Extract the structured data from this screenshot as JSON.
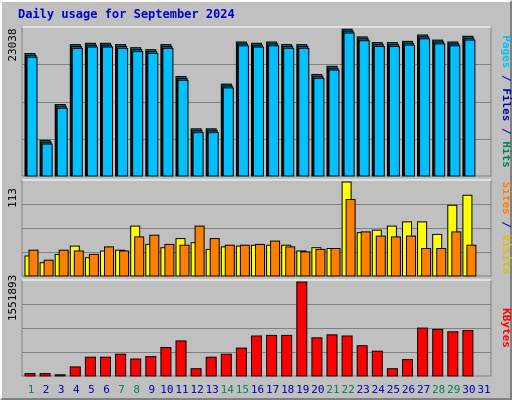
{
  "title": "Daily usage for September 2024",
  "colors": {
    "background": "#c0c0c0",
    "panel": "#c0c0c0",
    "grid": "#808080",
    "title": "#0000cc",
    "hits": "#00805c",
    "files": "#0000aa",
    "pages": "#00c0ff",
    "hits_bar": "#00805c",
    "files_bar": "#0066cc",
    "pages_bar": "#00c0ff",
    "visits_bar": "#ffff00",
    "sites_bar": "#ff8000",
    "visits_label": "#e0c000",
    "sites_label": "#ff8000",
    "kbytes_bar": "#ff0000",
    "weekend_day": "#00805c",
    "weekday": "#0000aa"
  },
  "chart_data": [
    {
      "type": "bar",
      "panel": "hits-files-pages",
      "categories": [
        "1",
        "2",
        "3",
        "4",
        "5",
        "6",
        "7",
        "8",
        "9",
        "10",
        "11",
        "12",
        "13",
        "14",
        "15",
        "16",
        "17",
        "18",
        "19",
        "20",
        "21",
        "22",
        "23",
        "24",
        "25",
        "26",
        "27",
        "28",
        "29",
        "30",
        "31"
      ],
      "ymax_label": "23038",
      "ylim": [
        0,
        23038
      ],
      "legend": [
        {
          "text": "Pages",
          "color_key": "pages"
        },
        {
          "text": " / ",
          "color_key": "files"
        },
        {
          "text": "Files",
          "color_key": "files"
        },
        {
          "text": " / ",
          "color_key": "files"
        },
        {
          "text": "Hits",
          "color_key": "hits"
        }
      ],
      "series": [
        {
          "name": "Hits",
          "values": [
            19200,
            5600,
            11200,
            20600,
            20800,
            20800,
            20600,
            20100,
            19800,
            20600,
            15600,
            7400,
            7400,
            14400,
            21000,
            20800,
            21000,
            20600,
            20600,
            15900,
            17200,
            23000,
            21800,
            20900,
            20900,
            21100,
            22100,
            21300,
            21000,
            21900,
            null
          ]
        },
        {
          "name": "Files",
          "values": [
            18900,
            5300,
            10900,
            20300,
            20500,
            20500,
            20300,
            19800,
            19500,
            20300,
            15300,
            7100,
            7100,
            14100,
            20700,
            20500,
            20700,
            20300,
            20300,
            15600,
            16900,
            22700,
            21500,
            20600,
            20600,
            20800,
            21800,
            21000,
            20700,
            21600,
            null
          ]
        },
        {
          "name": "Pages",
          "values": [
            18600,
            5000,
            10600,
            20000,
            20200,
            20200,
            20000,
            19500,
            19200,
            20000,
            15000,
            6800,
            6800,
            13800,
            20400,
            20200,
            20400,
            20000,
            20000,
            15300,
            16600,
            22400,
            21200,
            20300,
            20300,
            20500,
            21500,
            20700,
            20400,
            21300,
            null
          ]
        }
      ]
    },
    {
      "type": "bar",
      "panel": "visits-sites",
      "categories": [
        "1",
        "2",
        "3",
        "4",
        "5",
        "6",
        "7",
        "8",
        "9",
        "10",
        "11",
        "12",
        "13",
        "14",
        "15",
        "16",
        "17",
        "18",
        "19",
        "20",
        "21",
        "22",
        "23",
        "24",
        "25",
        "26",
        "27",
        "28",
        "29",
        "30",
        "31"
      ],
      "ymax_label": "113",
      "ylim": [
        0,
        113
      ],
      "legend": [
        {
          "text": "Sites",
          "color_key": "sites_label"
        },
        {
          "text": " / ",
          "color_key": "files"
        },
        {
          "text": "Visits",
          "color_key": "visits_label"
        }
      ],
      "series": [
        {
          "name": "Visits",
          "values": [
            24,
            16,
            26,
            36,
            22,
            30,
            31,
            60,
            38,
            34,
            45,
            40,
            32,
            35,
            36,
            37,
            37,
            37,
            30,
            34,
            33,
            113,
            52,
            55,
            60,
            65,
            65,
            50,
            85,
            97,
            null
          ]
        },
        {
          "name": "Sites",
          "values": [
            31,
            19,
            31,
            30,
            26,
            35,
            30,
            47,
            49,
            38,
            37,
            60,
            45,
            37,
            37,
            38,
            42,
            35,
            29,
            32,
            33,
            92,
            53,
            48,
            47,
            48,
            33,
            33,
            53,
            37,
            null
          ]
        }
      ]
    },
    {
      "type": "bar",
      "panel": "kbytes",
      "categories": [
        "1",
        "2",
        "3",
        "4",
        "5",
        "6",
        "7",
        "8",
        "9",
        "10",
        "11",
        "12",
        "13",
        "14",
        "15",
        "16",
        "17",
        "18",
        "19",
        "20",
        "21",
        "22",
        "23",
        "24",
        "25",
        "26",
        "27",
        "28",
        "29",
        "30",
        "31"
      ],
      "ymax_label": "1551893",
      "ylim": [
        0,
        1551893
      ],
      "legend": [
        {
          "text": "KBytes",
          "color_key": "kbytes_bar"
        }
      ],
      "series": [
        {
          "name": "KBytes",
          "values": [
            40000,
            40000,
            20000,
            150000,
            310000,
            310000,
            360000,
            280000,
            320000,
            470000,
            580000,
            120000,
            310000,
            360000,
            460000,
            660000,
            670000,
            670000,
            1551893,
            630000,
            680000,
            660000,
            500000,
            410000,
            120000,
            270000,
            790000,
            770000,
            730000,
            750000,
            null
          ]
        }
      ]
    }
  ],
  "x_axis": {
    "labels": [
      "1",
      "2",
      "3",
      "4",
      "5",
      "6",
      "7",
      "8",
      "9",
      "10",
      "11",
      "12",
      "13",
      "14",
      "15",
      "16",
      "17",
      "18",
      "19",
      "20",
      "21",
      "22",
      "23",
      "24",
      "25",
      "26",
      "27",
      "28",
      "29",
      "30",
      "31"
    ],
    "weekend": [
      1,
      7,
      8,
      14,
      15,
      21,
      22,
      28,
      29
    ]
  }
}
